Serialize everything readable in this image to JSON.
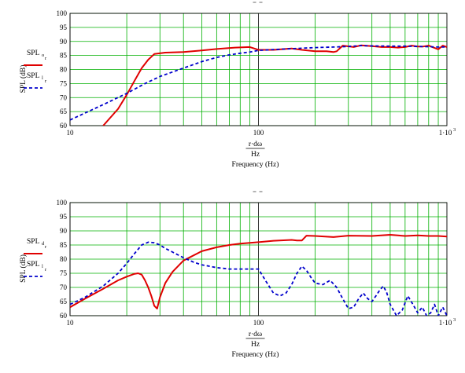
{
  "chart_data": [
    {
      "type": "line",
      "title": "",
      "xlabel": "Frequency (Hz)",
      "xlabel_expr_num": "r·dω",
      "xlabel_expr_den": "Hz",
      "ylabel": "SPL (dB)",
      "xscale": "log",
      "xlim": [
        10,
        1000
      ],
      "ylim": [
        60,
        100
      ],
      "yticks": [
        "60",
        "65",
        "70",
        "75",
        "80",
        "85",
        "90",
        "95",
        "100"
      ],
      "xticks": [
        "10",
        "100",
        "1·10"
      ],
      "xtick_exponent": "3",
      "grid": true,
      "legend_placement": "left",
      "colors": {
        "grid": "#00b000",
        "series1": "#e00000",
        "series2": "#0000cc"
      },
      "series": [
        {
          "name": "SPL",
          "subscript": "o",
          "subsub": "r",
          "color": "#e00000",
          "style": "solid",
          "x": [
            15,
            18,
            20,
            22,
            24,
            26,
            28,
            32,
            40,
            50,
            60,
            75,
            90,
            100,
            120,
            150,
            170,
            200,
            230,
            250,
            260,
            280,
            320,
            350,
            400,
            450,
            500,
            550,
            600,
            650,
            700,
            750,
            800,
            850,
            900,
            950,
            1000
          ],
          "y": [
            60,
            66,
            71,
            76,
            80.5,
            83.5,
            85.5,
            86,
            86.2,
            86.8,
            87.3,
            87.8,
            88,
            87,
            87,
            87.5,
            87,
            86.5,
            86.5,
            86.2,
            86.5,
            88.5,
            88,
            88.6,
            88.3,
            88,
            88,
            87.8,
            88,
            88.5,
            88.2,
            88.2,
            88.5,
            87.8,
            87.2,
            88.5,
            88
          ]
        },
        {
          "name": "SPL",
          "subscript": "l",
          "subsub": "r",
          "color": "#0000cc",
          "style": "dashed",
          "x": [
            10,
            15,
            20,
            25,
            30,
            40,
            50,
            60,
            70,
            80,
            90,
            100,
            120,
            150,
            200,
            250,
            300,
            350,
            400,
            500,
            600,
            700,
            800,
            900,
            1000
          ],
          "y": [
            62,
            67.5,
            71.5,
            75,
            77.5,
            80.5,
            82.8,
            84.3,
            85.2,
            85.8,
            86.2,
            86.8,
            87.1,
            87.4,
            87.8,
            88,
            88.2,
            88.5,
            88.4,
            88.3,
            88.3,
            88.2,
            88.1,
            88,
            88
          ]
        }
      ]
    },
    {
      "type": "line",
      "title": "",
      "xlabel": "Frequency (Hz)",
      "xlabel_expr_num": "r·dω",
      "xlabel_expr_den": "Hz",
      "ylabel": "SPL (dB)",
      "xscale": "log",
      "xlim": [
        10,
        1000
      ],
      "ylim": [
        60,
        100
      ],
      "yticks": [
        "60",
        "65",
        "70",
        "75",
        "80",
        "85",
        "90",
        "95",
        "100"
      ],
      "xticks": [
        "10",
        "100",
        "1·10"
      ],
      "xtick_exponent": "3",
      "grid": true,
      "legend_placement": "left",
      "colors": {
        "grid": "#00b000",
        "series1": "#e00000",
        "series2": "#0000cc"
      },
      "series": [
        {
          "name": "SPL",
          "subscript": "d",
          "subsub": "r",
          "color": "#e00000",
          "style": "solid",
          "x": [
            10,
            12,
            15,
            18,
            20,
            22,
            23,
            24,
            25,
            26,
            27,
            28,
            29,
            30,
            32,
            35,
            40,
            50,
            60,
            70,
            80,
            100,
            120,
            150,
            160,
            170,
            180,
            200,
            250,
            300,
            400,
            500,
            600,
            700,
            800,
            900,
            1000
          ],
          "y": [
            63,
            66,
            69.5,
            72.5,
            73.8,
            74.8,
            75,
            74.5,
            72.5,
            70,
            67,
            63.5,
            62.5,
            66.5,
            71.5,
            75.5,
            79.5,
            82.8,
            84.2,
            85,
            85.5,
            86,
            86.5,
            86.8,
            86.6,
            86.6,
            88.3,
            88.2,
            87.8,
            88.3,
            88.2,
            88.6,
            88.2,
            88.4,
            88.2,
            88.2,
            88
          ]
        },
        {
          "name": "SPL",
          "subscript": "l",
          "subsub": "r",
          "color": "#0000cc",
          "style": "dashed",
          "x": [
            10,
            12,
            15,
            18,
            20,
            22,
            24,
            26,
            28,
            30,
            32,
            35,
            40,
            45,
            50,
            60,
            70,
            80,
            90,
            100,
            110,
            120,
            130,
            140,
            150,
            160,
            170,
            180,
            190,
            200,
            220,
            240,
            260,
            280,
            300,
            320,
            340,
            360,
            380,
            400,
            420,
            440,
            460,
            480,
            500,
            540,
            580,
            620,
            660,
            700,
            740,
            780,
            820,
            860,
            900,
            950,
            1000
          ],
          "y": [
            64,
            66.5,
            70.5,
            75,
            78.5,
            82,
            85,
            86,
            85.8,
            85,
            83.8,
            82.5,
            80.5,
            79,
            78,
            77,
            76.5,
            76.5,
            76.5,
            76.5,
            72,
            68,
            67,
            68,
            71,
            75,
            77.5,
            76,
            73.5,
            71.5,
            71,
            72.5,
            70,
            66,
            62.5,
            63,
            66,
            68,
            66,
            65,
            67,
            69,
            70.5,
            68,
            64,
            60,
            62,
            67,
            64,
            61,
            63,
            60,
            61,
            64,
            60,
            63,
            60
          ]
        }
      ]
    }
  ]
}
